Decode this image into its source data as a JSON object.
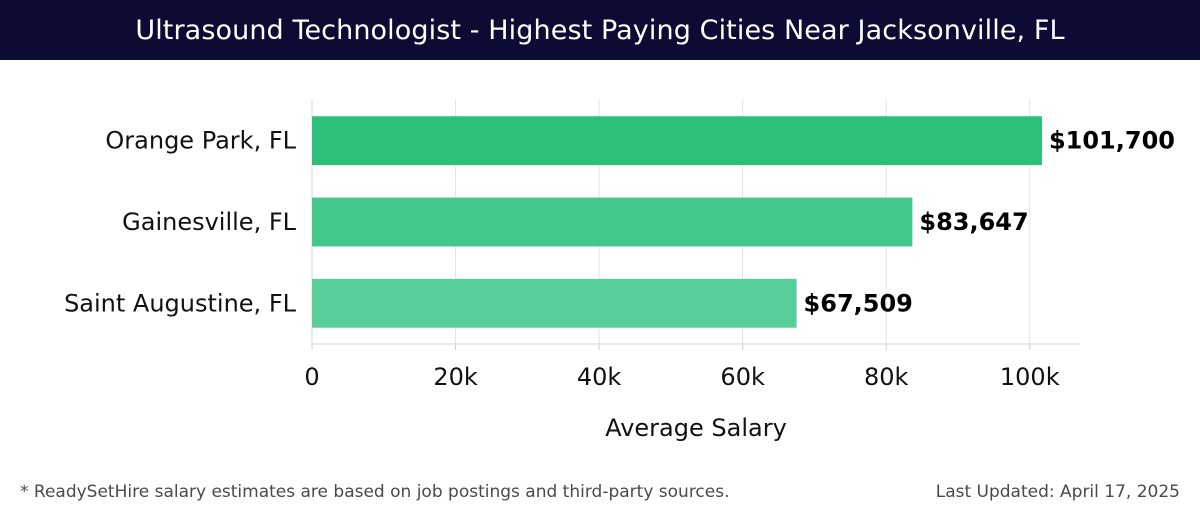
{
  "header": {
    "title": "Ultrasound Technologist - Highest Paying Cities Near Jacksonville, FL"
  },
  "footer": {
    "note": "* ReadySetHire salary estimates are based on job postings and third-party sources.",
    "updated": "Last Updated: April 17, 2025"
  },
  "colors": {
    "header_bg": "#0c0b33",
    "bar_colors": [
      "#2cbf78",
      "#42c88a",
      "#58cf99"
    ],
    "grid": "#e3e3e3"
  },
  "chart_data": {
    "type": "bar",
    "orientation": "horizontal",
    "categories": [
      "Orange Park, FL",
      "Gainesville, FL",
      "Saint Augustine, FL"
    ],
    "values": [
      101700,
      83647,
      67509
    ],
    "value_labels": [
      "$101,700",
      "$83,647",
      "$67,509"
    ],
    "xlabel": "Average Salary",
    "ylabel": "",
    "xlim": [
      0,
      107000
    ],
    "x_ticks": [
      0,
      20000,
      40000,
      60000,
      80000,
      100000
    ],
    "x_tick_labels": [
      "0",
      "20k",
      "40k",
      "60k",
      "80k",
      "100k"
    ],
    "grid": true,
    "legend": "none"
  }
}
